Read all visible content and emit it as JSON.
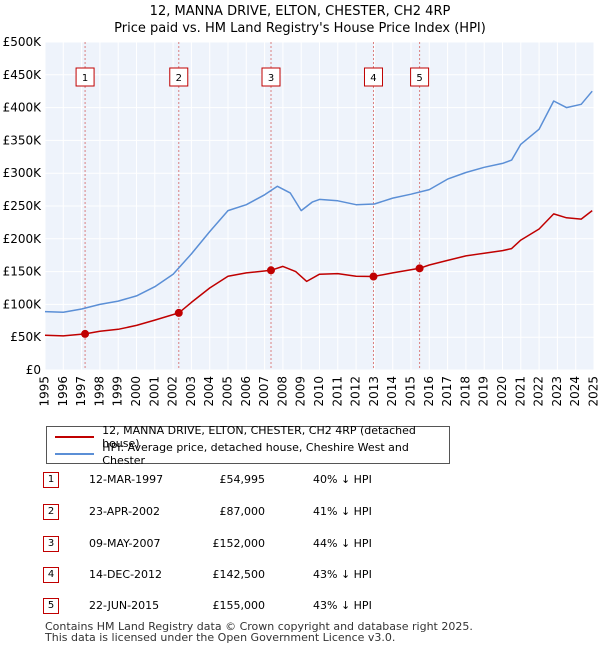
{
  "title": {
    "line1": "12, MANNA DRIVE, ELTON, CHESTER, CH2 4RP",
    "line2": "Price paid vs. HM Land Registry's House Price Index (HPI)"
  },
  "legend": {
    "property": "12, MANNA DRIVE, ELTON, CHESTER, CH2 4RP (detached house)",
    "hpi": "HPI: Average price, detached house, Cheshire West and Chester"
  },
  "sales": [
    {
      "num": "1",
      "date": "12-MAR-1997",
      "price": "£54,995",
      "hpi": "40% ↓ HPI"
    },
    {
      "num": "2",
      "date": "23-APR-2002",
      "price": "£87,000",
      "hpi": "41% ↓ HPI"
    },
    {
      "num": "3",
      "date": "09-MAY-2007",
      "price": "£152,000",
      "hpi": "44% ↓ HPI"
    },
    {
      "num": "4",
      "date": "14-DEC-2012",
      "price": "£142,500",
      "hpi": "43% ↓ HPI"
    },
    {
      "num": "5",
      "date": "22-JUN-2015",
      "price": "£155,000",
      "hpi": "43% ↓ HPI"
    }
  ],
  "footer": {
    "line1": "Contains HM Land Registry data © Crown copyright and database right 2025.",
    "line2": "This data is licensed under the Open Government Licence v3.0."
  },
  "colors": {
    "property": "#c00000",
    "hpi": "#5b8fd6",
    "plot_bg": "#eef3fb",
    "grid": "#ffffff"
  },
  "chart_data": {
    "type": "line",
    "ylim": [
      0,
      500000
    ],
    "xlim": [
      1995,
      2025
    ],
    "y_ticks": [
      {
        "value": 0,
        "label": "£0"
      },
      {
        "value": 50000,
        "label": "£50K"
      },
      {
        "value": 100000,
        "label": "£100K"
      },
      {
        "value": 150000,
        "label": "£150K"
      },
      {
        "value": 200000,
        "label": "£200K"
      },
      {
        "value": 250000,
        "label": "£250K"
      },
      {
        "value": 300000,
        "label": "£300K"
      },
      {
        "value": 350000,
        "label": "£350K"
      },
      {
        "value": 400000,
        "label": "£400K"
      },
      {
        "value": 450000,
        "label": "£450K"
      },
      {
        "value": 500000,
        "label": "£500K"
      }
    ],
    "x_ticks": [
      "1995",
      "1996",
      "1997",
      "1998",
      "1999",
      "2000",
      "2001",
      "2002",
      "2003",
      "2004",
      "2005",
      "2006",
      "2007",
      "2008",
      "2009",
      "2010",
      "2011",
      "2012",
      "2013",
      "2014",
      "2015",
      "2016",
      "2017",
      "2018",
      "2019",
      "2020",
      "2021",
      "2022",
      "2023",
      "2024",
      "2025"
    ],
    "series": [
      {
        "name": "12, MANNA DRIVE, ELTON, CHESTER, CH2 4RP (detached house)",
        "points": [
          [
            1995.0,
            53000
          ],
          [
            1996.0,
            52000
          ],
          [
            1997.19,
            54995
          ],
          [
            1998.0,
            59000
          ],
          [
            1999.0,
            62000
          ],
          [
            2000.0,
            68000
          ],
          [
            2001.0,
            76000
          ],
          [
            2002.31,
            87000
          ],
          [
            2003.0,
            103000
          ],
          [
            2004.0,
            125000
          ],
          [
            2005.0,
            143000
          ],
          [
            2006.0,
            148000
          ],
          [
            2007.35,
            152000
          ],
          [
            2008.0,
            158000
          ],
          [
            2008.7,
            150000
          ],
          [
            2009.3,
            135000
          ],
          [
            2010.0,
            146000
          ],
          [
            2011.0,
            147000
          ],
          [
            2012.0,
            143000
          ],
          [
            2012.95,
            142500
          ],
          [
            2014.0,
            148000
          ],
          [
            2015.47,
            155000
          ],
          [
            2016.0,
            160000
          ],
          [
            2017.0,
            167000
          ],
          [
            2018.0,
            174000
          ],
          [
            2019.0,
            178000
          ],
          [
            2020.0,
            182000
          ],
          [
            2020.5,
            185000
          ],
          [
            2021.0,
            198000
          ],
          [
            2022.0,
            215000
          ],
          [
            2022.8,
            238000
          ],
          [
            2023.5,
            232000
          ],
          [
            2024.3,
            230000
          ],
          [
            2024.9,
            243000
          ]
        ]
      },
      {
        "name": "HPI: Average price, detached house, Cheshire West and Chester",
        "points": [
          [
            1995.0,
            89000
          ],
          [
            1996.0,
            88000
          ],
          [
            1997.0,
            93000
          ],
          [
            1998.0,
            100000
          ],
          [
            1999.0,
            105000
          ],
          [
            2000.0,
            113000
          ],
          [
            2001.0,
            127000
          ],
          [
            2002.0,
            146000
          ],
          [
            2003.0,
            177000
          ],
          [
            2004.0,
            211000
          ],
          [
            2005.0,
            243000
          ],
          [
            2006.0,
            252000
          ],
          [
            2007.0,
            267000
          ],
          [
            2007.7,
            280000
          ],
          [
            2008.4,
            270000
          ],
          [
            2009.0,
            243000
          ],
          [
            2009.6,
            256000
          ],
          [
            2010.0,
            260000
          ],
          [
            2011.0,
            258000
          ],
          [
            2012.0,
            252000
          ],
          [
            2013.0,
            253000
          ],
          [
            2014.0,
            262000
          ],
          [
            2015.0,
            268000
          ],
          [
            2016.0,
            275000
          ],
          [
            2017.0,
            291000
          ],
          [
            2018.0,
            301000
          ],
          [
            2019.0,
            309000
          ],
          [
            2020.0,
            315000
          ],
          [
            2020.5,
            320000
          ],
          [
            2021.0,
            344000
          ],
          [
            2022.0,
            367000
          ],
          [
            2022.8,
            410000
          ],
          [
            2023.5,
            400000
          ],
          [
            2024.3,
            405000
          ],
          [
            2024.9,
            425000
          ]
        ]
      }
    ],
    "sale_points": [
      {
        "label": "1",
        "x": 1997.19,
        "y": 54995
      },
      {
        "label": "2",
        "x": 2002.31,
        "y": 87000
      },
      {
        "label": "3",
        "x": 2007.35,
        "y": 152000
      },
      {
        "label": "4",
        "x": 2012.95,
        "y": 142500
      },
      {
        "label": "5",
        "x": 2015.47,
        "y": 155000
      }
    ]
  }
}
